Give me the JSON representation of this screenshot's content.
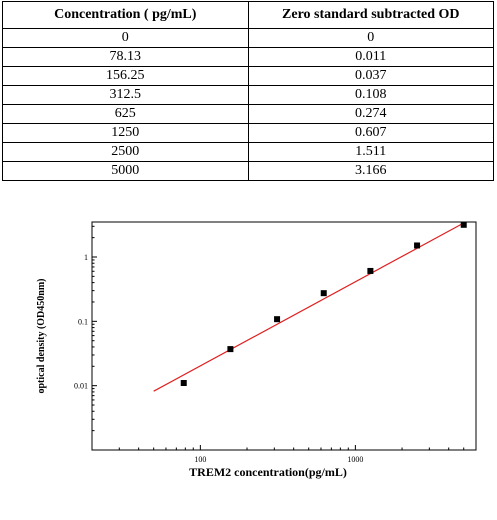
{
  "table": {
    "headers": [
      "Concentration ( pg/mL)",
      "Zero standard subtracted OD"
    ],
    "rows": [
      [
        "0",
        "0"
      ],
      [
        "78.13",
        "0.011"
      ],
      [
        "156.25",
        "0.037"
      ],
      [
        "312.5",
        "0.108"
      ],
      [
        "625",
        "0.274"
      ],
      [
        "1250",
        "0.607"
      ],
      [
        "2500",
        "1.511"
      ],
      [
        "5000",
        "3.166"
      ]
    ]
  },
  "chart_data": {
    "type": "scatter",
    "title": "",
    "xlabel": "TREM2  concentration(pg/mL)",
    "ylabel": "optical density (OD450nm)",
    "x_scale": "log",
    "y_scale": "log",
    "xlim": [
      20,
      6000
    ],
    "ylim": [
      0.001,
      3.5
    ],
    "x_ticks": [
      100,
      1000
    ],
    "x_tick_labels": [
      "100",
      "1000"
    ],
    "y_ticks": [
      0.01,
      0.1,
      1
    ],
    "y_tick_labels": [
      "0.01",
      "0.1",
      "1"
    ],
    "grid": false,
    "legend": "none",
    "series": [
      {
        "x": [
          78.13,
          156.25,
          312.5,
          625,
          1250,
          2500,
          5000
        ],
        "y": [
          0.011,
          0.037,
          0.108,
          0.274,
          0.607,
          1.511,
          3.166
        ],
        "marker": "square",
        "color": "#000000"
      }
    ],
    "fit_line": {
      "x": [
        50,
        5000
      ],
      "y": [
        0.0082,
        3.38
      ],
      "color": "#e02020"
    }
  }
}
